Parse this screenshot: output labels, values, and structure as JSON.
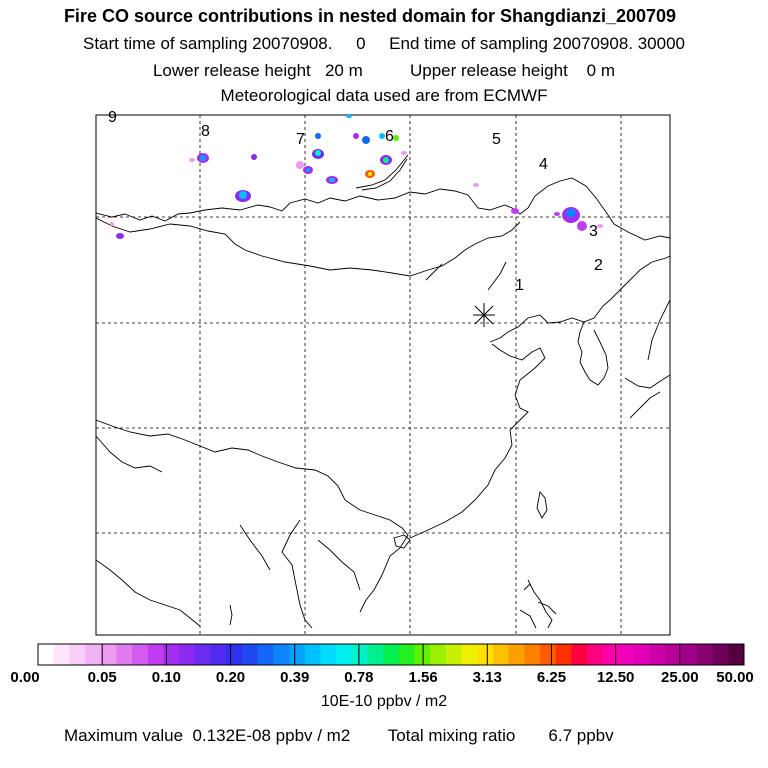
{
  "header": {
    "title": "Fire CO source contributions in nested domain for Shangdianzi_200709",
    "sampling_line": "Start time of sampling 20070908.     0     End time of sampling 20070908. 30000",
    "release_line": "Lower release height   20 m          Upper release height    0 m",
    "met_line": "Meteorological data used are from ECMWF"
  },
  "map": {
    "region_labels": [
      "9",
      "8",
      "7",
      "6",
      "5",
      "4",
      "3",
      "2",
      "1"
    ],
    "receptor_marker": "star-asterisk"
  },
  "colorbar": {
    "tick_labels": [
      "0.00",
      "0.05",
      "0.10",
      "0.20",
      "0.39",
      "0.78",
      "1.56",
      "3.13",
      "6.25",
      "12.50",
      "25.00",
      "50.00"
    ],
    "colors": [
      "#ffffff",
      "#fde6fd",
      "#f8cdf8",
      "#f2b3f4",
      "#ec9cf0",
      "#e07cf0",
      "#d25bf0",
      "#c13cf0",
      "#a52df0",
      "#8a2cf0",
      "#6c2cf0",
      "#4f2cf0",
      "#3030f0",
      "#1f48f0",
      "#1466f5",
      "#0c84fa",
      "#05a3ff",
      "#00c0ff",
      "#00dcff",
      "#00f0f0",
      "#00f0c8",
      "#00f090",
      "#00f050",
      "#22f020",
      "#60f000",
      "#9af000",
      "#c8f000",
      "#eef000",
      "#ffe000",
      "#ffc000",
      "#ffa000",
      "#ff8000",
      "#ff5a00",
      "#ff3000",
      "#ff0040",
      "#ff0080",
      "#ff00a8",
      "#f000b8",
      "#e000b8",
      "#cc00a8",
      "#b80098",
      "#a00088",
      "#880070",
      "#6e0058",
      "#540040"
    ],
    "unit": "10E-10 ppbv / m2"
  },
  "footer": {
    "max_label": "Maximum value  0.132E-08 ppbv / m2",
    "total_label": "Total mixing ratio       6.7 ppbv"
  }
}
